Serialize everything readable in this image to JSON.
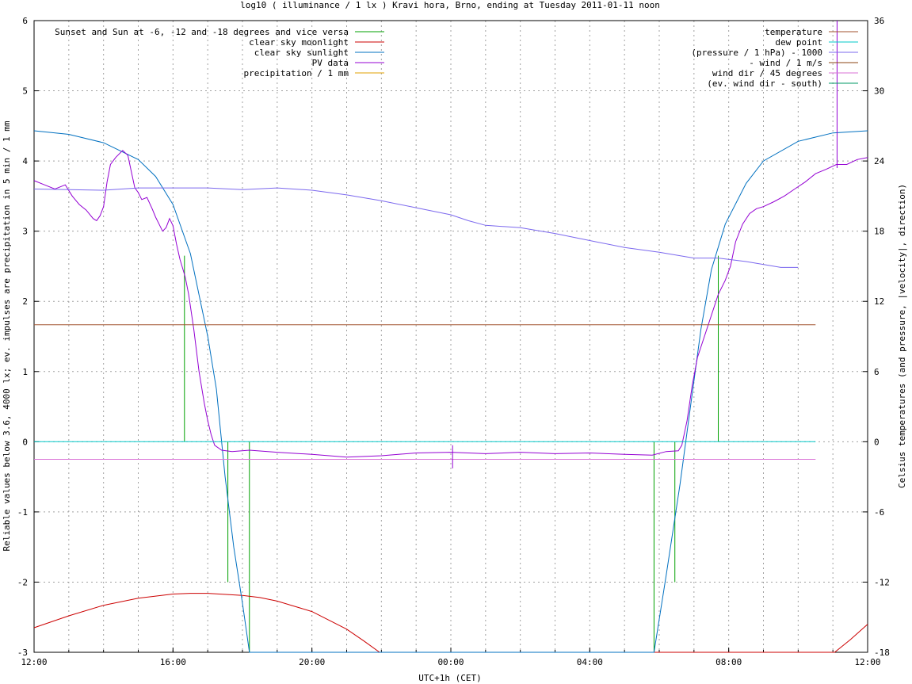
{
  "chart_data": {
    "type": "line",
    "title": "log10 ( illuminance / 1 lx ) Kravi hora, Brno, ending at Tuesday 2011-01-11 noon",
    "xlabel": "UTC+1h (CET)",
    "ylabel": "Reliable values below 3.6, 4000 lx; ev. impulses are precipitation in 5 min / 1 mm",
    "y2label": "Celsius temperatures (and pressure, |velocity|, direction)",
    "xlim": [
      0,
      24
    ],
    "ylim": [
      -3,
      6
    ],
    "y2lim": [
      -18,
      36
    ],
    "x_unit": "hours after 12:00 (2011-01-10 12:00 to 2011-01-11 12:00)",
    "x_tick_labels": [
      "12:00",
      "16:00",
      "20:00",
      "00:00",
      "04:00",
      "08:00",
      "12:00"
    ],
    "y_tick_labels": [
      "-3",
      "-2",
      "-1",
      "0",
      "1",
      "2",
      "3",
      "4",
      "5",
      "6"
    ],
    "y2_tick_labels": [
      "-18",
      "-12",
      "-6",
      "0",
      "6",
      "12",
      "18",
      "24",
      "30",
      "36"
    ],
    "grid": true,
    "legend_left": "top-left",
    "legend_right": "top-right",
    "series": [
      {
        "name": "Sunset and Sun at -6, -12 and -18 degrees and vice versa",
        "color": "#00a000",
        "axis": "y",
        "style": "impulses",
        "impulses": [
          {
            "x": 4.33,
            "y": 2.65
          },
          {
            "x": 5.58,
            "y": -2.0
          },
          {
            "x": 6.2,
            "y": -3.0
          },
          {
            "x": 17.85,
            "y": -3.0
          },
          {
            "x": 18.45,
            "y": -2.0
          },
          {
            "x": 19.7,
            "y": 2.65
          }
        ]
      },
      {
        "name": "clear sky moonlight",
        "color": "#cc0000",
        "axis": "y",
        "style": "line",
        "points": [
          [
            0,
            -2.65
          ],
          [
            1,
            -2.48
          ],
          [
            2,
            -2.33
          ],
          [
            3,
            -2.23
          ],
          [
            4,
            -2.17
          ],
          [
            4.5,
            -2.16
          ],
          [
            5,
            -2.16
          ],
          [
            6,
            -2.19
          ],
          [
            6.5,
            -2.22
          ],
          [
            7,
            -2.27
          ],
          [
            8,
            -2.42
          ],
          [
            9,
            -2.67
          ],
          [
            9.5,
            -2.84
          ],
          [
            9.95,
            -3.0
          ],
          [
            23.05,
            -3.0
          ],
          [
            23.5,
            -2.82
          ],
          [
            24,
            -2.6
          ]
        ]
      },
      {
        "name": "clear sky sunlight",
        "color": "#0070c0",
        "axis": "y",
        "style": "line",
        "points": [
          [
            0,
            4.43
          ],
          [
            1,
            4.38
          ],
          [
            2,
            4.26
          ],
          [
            3,
            4.02
          ],
          [
            3.5,
            3.78
          ],
          [
            4,
            3.38
          ],
          [
            4.5,
            2.68
          ],
          [
            5,
            1.5
          ],
          [
            5.25,
            0.75
          ],
          [
            5.5,
            -0.5
          ],
          [
            5.75,
            -1.5
          ],
          [
            6.0,
            -2.3
          ],
          [
            6.2,
            -3.0
          ],
          [
            17.85,
            -3.0
          ],
          [
            18.2,
            -1.9
          ],
          [
            18.6,
            -0.6
          ],
          [
            18.9,
            0.5
          ],
          [
            19.2,
            1.6
          ],
          [
            19.5,
            2.45
          ],
          [
            19.9,
            3.1
          ],
          [
            20.5,
            3.68
          ],
          [
            21,
            4.0
          ],
          [
            22,
            4.28
          ],
          [
            23,
            4.4
          ],
          [
            24,
            4.43
          ]
        ]
      },
      {
        "name": "PV data",
        "color": "#9400d3",
        "axis": "y",
        "style": "line",
        "points": [
          [
            0,
            3.72
          ],
          [
            0.3,
            3.66
          ],
          [
            0.6,
            3.6
          ],
          [
            0.9,
            3.66
          ],
          [
            1.1,
            3.5
          ],
          [
            1.3,
            3.38
          ],
          [
            1.5,
            3.3
          ],
          [
            1.7,
            3.18
          ],
          [
            1.8,
            3.15
          ],
          [
            1.9,
            3.22
          ],
          [
            2.0,
            3.35
          ],
          [
            2.1,
            3.7
          ],
          [
            2.2,
            3.95
          ],
          [
            2.35,
            4.05
          ],
          [
            2.55,
            4.15
          ],
          [
            2.7,
            4.08
          ],
          [
            2.8,
            3.85
          ],
          [
            2.9,
            3.62
          ],
          [
            3.0,
            3.55
          ],
          [
            3.1,
            3.45
          ],
          [
            3.25,
            3.48
          ],
          [
            3.4,
            3.32
          ],
          [
            3.5,
            3.2
          ],
          [
            3.6,
            3.1
          ],
          [
            3.7,
            3.0
          ],
          [
            3.8,
            3.05
          ],
          [
            3.9,
            3.18
          ],
          [
            4.0,
            3.08
          ],
          [
            4.1,
            2.82
          ],
          [
            4.2,
            2.6
          ],
          [
            4.35,
            2.35
          ],
          [
            4.45,
            2.1
          ],
          [
            4.6,
            1.6
          ],
          [
            4.75,
            1.0
          ],
          [
            4.9,
            0.55
          ],
          [
            5.0,
            0.3
          ],
          [
            5.1,
            0.1
          ],
          [
            5.2,
            -0.05
          ],
          [
            5.4,
            -0.12
          ],
          [
            5.7,
            -0.14
          ],
          [
            6.2,
            -0.12
          ],
          [
            7,
            -0.15
          ],
          [
            8,
            -0.18
          ],
          [
            9,
            -0.22
          ],
          [
            10,
            -0.2
          ],
          [
            11,
            -0.16
          ],
          [
            12,
            -0.15
          ],
          [
            13,
            -0.17
          ],
          [
            14,
            -0.15
          ],
          [
            15,
            -0.17
          ],
          [
            16,
            -0.16
          ],
          [
            17,
            -0.18
          ],
          [
            17.8,
            -0.19
          ],
          [
            18.2,
            -0.14
          ],
          [
            18.55,
            -0.13
          ],
          [
            18.65,
            -0.05
          ],
          [
            18.8,
            0.3
          ],
          [
            18.95,
            0.8
          ],
          [
            19.1,
            1.2
          ],
          [
            19.3,
            1.5
          ],
          [
            19.5,
            1.8
          ],
          [
            19.7,
            2.1
          ],
          [
            19.9,
            2.3
          ],
          [
            20.05,
            2.5
          ],
          [
            20.2,
            2.85
          ],
          [
            20.4,
            3.1
          ],
          [
            20.6,
            3.25
          ],
          [
            20.8,
            3.32
          ],
          [
            21.0,
            3.35
          ],
          [
            21.3,
            3.42
          ],
          [
            21.6,
            3.5
          ],
          [
            21.9,
            3.6
          ],
          [
            22.2,
            3.7
          ],
          [
            22.5,
            3.82
          ],
          [
            22.8,
            3.88
          ],
          [
            23.1,
            3.95
          ],
          [
            23.4,
            3.95
          ],
          [
            23.7,
            4.02
          ],
          [
            24,
            4.05
          ]
        ]
      },
      {
        "name": "precipitation / 1 mm",
        "color": "#e0a000",
        "axis": "y",
        "style": "impulses",
        "impulses": []
      },
      {
        "name": "temperature",
        "color": "#a0522d",
        "axis": "y2",
        "style": "line",
        "points": [
          [
            0,
            10.0
          ],
          [
            22.5,
            10.0
          ]
        ]
      },
      {
        "name": "dew point",
        "color": "#00c8c8",
        "axis": "y2",
        "style": "line",
        "points": [
          [
            0,
            0.0
          ],
          [
            22.5,
            0.0
          ]
        ]
      },
      {
        "name": "(pressure / 1 hPa) - 1000",
        "color": "#7b68ee",
        "axis": "y2",
        "style": "line",
        "points": [
          [
            0,
            21.6
          ],
          [
            1,
            21.55
          ],
          [
            2,
            21.5
          ],
          [
            3,
            21.7
          ],
          [
            4,
            21.7
          ],
          [
            5,
            21.7
          ],
          [
            6,
            21.55
          ],
          [
            7,
            21.7
          ],
          [
            8,
            21.5
          ],
          [
            9,
            21.1
          ],
          [
            10,
            20.6
          ],
          [
            11,
            20.0
          ],
          [
            12,
            19.4
          ],
          [
            12.5,
            18.9
          ],
          [
            13,
            18.5
          ],
          [
            14,
            18.3
          ],
          [
            15,
            17.8
          ],
          [
            16,
            17.2
          ],
          [
            17,
            16.6
          ],
          [
            18,
            16.2
          ],
          [
            19,
            15.7
          ],
          [
            19.7,
            15.7
          ],
          [
            20.5,
            15.4
          ],
          [
            21.5,
            14.9
          ],
          [
            22,
            14.9
          ]
        ]
      },
      {
        "name": "- wind / 1 m/s",
        "color": "#8b4513",
        "axis": "y2",
        "style": "line",
        "points": []
      },
      {
        "name": "wind dir / 45 degrees",
        "color": "#da70d6",
        "axis": "y2",
        "style": "line",
        "points": [
          [
            0,
            -1.5
          ],
          [
            22.5,
            -1.5
          ]
        ]
      },
      {
        "name": "(ev. wind dir - south)",
        "color": "#009966",
        "axis": "y2",
        "style": "line",
        "points": []
      }
    ],
    "extra_marks": [
      {
        "color": "#9400d3",
        "axis": "y",
        "x": 23.12,
        "y_from": 3.9,
        "y_to": 6.0
      },
      {
        "color": "#9400d3",
        "axis": "y",
        "x": 12.05,
        "y_from": -0.05,
        "y_to": -0.38
      }
    ]
  }
}
